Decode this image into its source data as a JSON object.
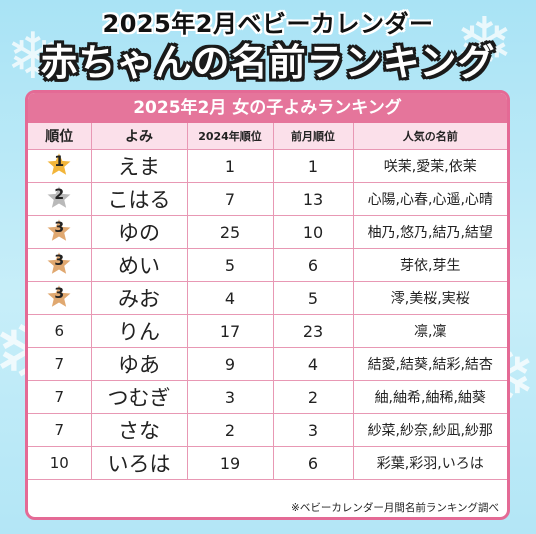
{
  "header": {
    "line1": "2025年2月ベビーカレンダー",
    "line2": "赤ちゃんの名前ランキング"
  },
  "card": {
    "title": "2025年2月  女の子よみランキング",
    "columns": [
      "順位",
      "よみ",
      "2024年順位",
      "前月順位",
      "人気の名前"
    ],
    "rows": [
      {
        "rank": "1",
        "medal": "gold",
        "yomi": "えま",
        "rank2024": "1",
        "prev": "1",
        "names": "咲茉,愛茉,依茉"
      },
      {
        "rank": "2",
        "medal": "silver",
        "yomi": "こはる",
        "rank2024": "7",
        "prev": "13",
        "names": "心陽,心春,心遥,心晴"
      },
      {
        "rank": "3",
        "medal": "bronze",
        "yomi": "ゆの",
        "rank2024": "25",
        "prev": "10",
        "names": "柚乃,悠乃,結乃,結望"
      },
      {
        "rank": "3",
        "medal": "bronze",
        "yomi": "めい",
        "rank2024": "5",
        "prev": "6",
        "names": "芽依,芽生"
      },
      {
        "rank": "3",
        "medal": "bronze",
        "yomi": "みお",
        "rank2024": "4",
        "prev": "5",
        "names": "澪,美桜,実桜"
      },
      {
        "rank": "6",
        "medal": "",
        "yomi": "りん",
        "rank2024": "17",
        "prev": "23",
        "names": "凛,凜"
      },
      {
        "rank": "7",
        "medal": "",
        "yomi": "ゆあ",
        "rank2024": "9",
        "prev": "4",
        "names": "結愛,結葵,結彩,結杏"
      },
      {
        "rank": "7",
        "medal": "",
        "yomi": "つむぎ",
        "rank2024": "3",
        "prev": "2",
        "names": "紬,紬希,紬稀,紬葵"
      },
      {
        "rank": "7",
        "medal": "",
        "yomi": "さな",
        "rank2024": "2",
        "prev": "3",
        "names": "紗菜,紗奈,紗凪,紗那"
      },
      {
        "rank": "10",
        "medal": "",
        "yomi": "いろは",
        "rank2024": "19",
        "prev": "6",
        "names": "彩葉,彩羽,いろは"
      }
    ],
    "note": "※ベビーカレンダー月間名前ランキング調べ"
  },
  "colors": {
    "accent": "#e5759b",
    "header_bg": "#fbe0ea",
    "gold": "#f2b53a",
    "silver": "#b9b9b9",
    "bronze": "#e0a870",
    "sky": "#b3e6f6"
  },
  "icons": {
    "medal": "star-icon",
    "background": "snowflake-icon"
  }
}
